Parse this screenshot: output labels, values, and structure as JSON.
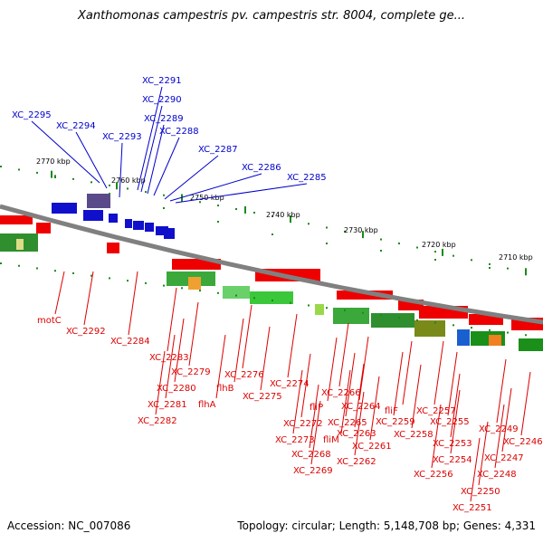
{
  "title": "Xanthomonas campestris pv. campestris str. 8004, complete ge...",
  "footer": {
    "accession": "Accession: NC_007086",
    "topology": "Topology: circular; Length: 5,148,708 bp; Genes: 4,331"
  },
  "colors": {
    "forward_label": "#0000cc",
    "reverse_label": "#dd0000",
    "backbone": "#808080",
    "tick": "#1a8a1a"
  },
  "kbp_labels": [
    "2770 kbp",
    "2760 kbp",
    "2750 kbp",
    "2740 kbp",
    "2730 kbp",
    "2720 kbp",
    "2710 kbp"
  ],
  "forward_genes": [
    "XC_2295",
    "XC_2294",
    "XC_2293",
    "XC_2291",
    "XC_2290",
    "XC_2289",
    "XC_2288",
    "XC_2287",
    "XC_2286",
    "XC_2285"
  ],
  "reverse_genes": [
    "motC",
    "XC_2292",
    "XC_2284",
    "XC_2283",
    "XC_2279",
    "XC_2280",
    "XC_2281",
    "XC_2282",
    "flhB",
    "flhA",
    "XC_2276",
    "XC_2275",
    "XC_2274",
    "XC_2272",
    "XC_2273",
    "XC_2268",
    "XC_2269",
    "fliP",
    "fliM",
    "XC_2266",
    "XC_2264",
    "XC_2265",
    "XC_2263",
    "XC_2261",
    "XC_2262",
    "fliF",
    "XC_2259",
    "XC_2258",
    "XC_2257",
    "XC_2255",
    "XC_2253",
    "XC_2254",
    "XC_2256",
    "XC_2249",
    "XC_2246",
    "XC_2247",
    "XC_2248",
    "XC_2250",
    "XC_2251"
  ]
}
